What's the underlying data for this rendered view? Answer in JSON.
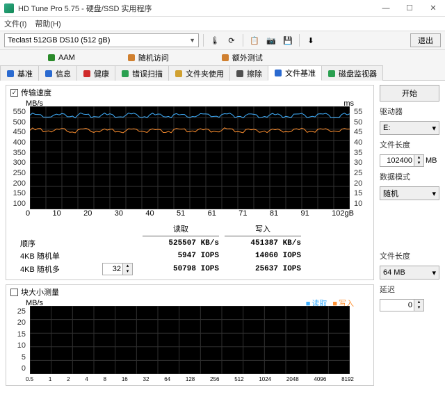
{
  "titlebar": {
    "icon": "hdtune-icon",
    "text": "HD Tune Pro 5.75 - 硬盘/SSD 实用程序"
  },
  "win": {
    "min": "—",
    "max": "☐",
    "close": "✕"
  },
  "menubar": {
    "file": "文件(I)",
    "help": "帮助(H)"
  },
  "toolbar": {
    "drive": "Teclast 512GB DS10 (512 gB)",
    "exit": "退出"
  },
  "topTabs": [
    {
      "icon": "speaker",
      "color": "#2a8a2a",
      "label": "AAM"
    },
    {
      "icon": "doc",
      "color": "#d08030",
      "label": "随机访问"
    },
    {
      "icon": "doc",
      "color": "#d08030",
      "label": "额外测试"
    }
  ],
  "mainTabs": [
    {
      "icon": "gauge",
      "color": "#2a6ad0",
      "label": "基准"
    },
    {
      "icon": "info",
      "color": "#2a6ad0",
      "label": "信息"
    },
    {
      "icon": "plus",
      "color": "#d02a2a",
      "label": "健康"
    },
    {
      "icon": "search",
      "color": "#2aa050",
      "label": "错误扫描"
    },
    {
      "icon": "folder",
      "color": "#d0a030",
      "label": "文件夹使用"
    },
    {
      "icon": "erase",
      "color": "#505050",
      "label": "擦除"
    },
    {
      "icon": "filebench",
      "color": "#2a6ad0",
      "label": "文件基准",
      "active": true
    },
    {
      "icon": "monitor",
      "color": "#2aa050",
      "label": "磁盘监视器"
    }
  ],
  "chart1": {
    "checkbox_label": "传输速度",
    "y_unit_left": "MB/s",
    "y_unit_right": "ms",
    "ylim": [
      100,
      550
    ],
    "ytick_step": 50,
    "y_right_lim": [
      10,
      55
    ],
    "y_right_step": 5,
    "xlim": [
      0,
      102
    ],
    "xticks": [
      0,
      10,
      20,
      30,
      40,
      51,
      61,
      71,
      81,
      91,
      "102gB"
    ],
    "read_color": "#40b0ff",
    "write_color": "#ff9030",
    "grid_color": "#303030",
    "background": "#000000",
    "read_mean": 510,
    "write_mean": 445
  },
  "results": {
    "col_read": "读取",
    "col_write": "写入",
    "rows": [
      {
        "label": "顺序",
        "read": "525507 KB/s",
        "write": "451387 KB/s"
      },
      {
        "label": "4KB 随机单",
        "read": "5947 IOPS",
        "write": "14060 IOPS"
      },
      {
        "label": "4KB 随机多",
        "spin": "32",
        "read": "50798 IOPS",
        "write": "25637 IOPS"
      }
    ]
  },
  "chart2": {
    "checkbox_label": "块大小测量",
    "y_unit": "MB/s",
    "ylim": [
      0,
      25
    ],
    "ytick_step": 5,
    "xticks": [
      "0.5",
      "1",
      "2",
      "4",
      "8",
      "16",
      "32",
      "64",
      "128",
      "256",
      "512",
      "1024",
      "2048",
      "4096",
      "8192"
    ],
    "legend_read": "读取",
    "legend_write": "写入",
    "read_color": "#40b0ff",
    "write_color": "#ff9030",
    "grid_color": "#303030",
    "background": "#000000"
  },
  "sidebar": {
    "start": "开始",
    "drive_label": "驱动器",
    "drive_value": "E:",
    "filelen_label": "文件长度",
    "filelen_value": "102400",
    "filelen_unit": "MB",
    "mode_label": "数据模式",
    "mode_value": "随机",
    "filelen2_label": "文件长度",
    "filelen2_value": "64 MB",
    "delay_label": "延迟",
    "delay_value": "0"
  }
}
